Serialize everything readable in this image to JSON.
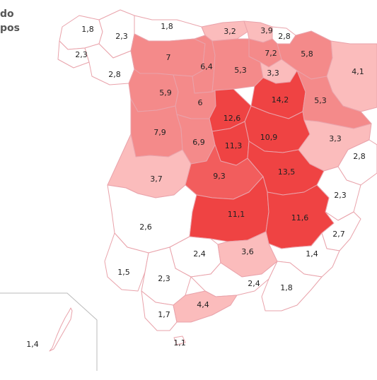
{
  "legend": {
    "line1": "do",
    "line2": "pos"
  },
  "colors": {
    "level1": "#ffffff",
    "level2": "#fbbcbc",
    "level3": "#f48a8a",
    "level4": "#f25d5d",
    "level5": "#ef4343",
    "border": "#e9a3ab"
  },
  "provinces": [
    {
      "id": "a-coruna",
      "label": "1,8",
      "level": 1
    },
    {
      "id": "lugo",
      "label": "2,3",
      "level": 1
    },
    {
      "id": "pontevedra",
      "label": "2,3",
      "level": 1
    },
    {
      "id": "ourense",
      "label": "2,8",
      "level": 1
    },
    {
      "id": "asturias",
      "label": "1,8",
      "level": 1
    },
    {
      "id": "cantabria",
      "label": "3,2",
      "level": 2
    },
    {
      "id": "bizkaia",
      "label": "3,9",
      "level": 2
    },
    {
      "id": "gipuzkoa",
      "label": "2,8",
      "level": 1
    },
    {
      "id": "alava",
      "label": "7,2",
      "level": 3
    },
    {
      "id": "navarra",
      "label": "5,8",
      "level": 3
    },
    {
      "id": "huesca",
      "label": "4,1",
      "level": 2
    },
    {
      "id": "leon",
      "label": "7",
      "level": 3
    },
    {
      "id": "palencia",
      "label": "6,4",
      "level": 3
    },
    {
      "id": "burgos",
      "label": "5,3",
      "level": 3
    },
    {
      "id": "la-rioja",
      "label": "3,3",
      "level": 2
    },
    {
      "id": "zamora",
      "label": "5,9",
      "level": 3
    },
    {
      "id": "valladolid",
      "label": "6",
      "level": 3
    },
    {
      "id": "soria",
      "label": "14,2",
      "level": 5
    },
    {
      "id": "zaragoza",
      "label": "5,3",
      "level": 3
    },
    {
      "id": "salamanca",
      "label": "7,9",
      "level": 3
    },
    {
      "id": "segovia",
      "label": "12,6",
      "level": 5
    },
    {
      "id": "guadalajara",
      "label": "10,9",
      "level": 5
    },
    {
      "id": "avila",
      "label": "6,9",
      "level": 3
    },
    {
      "id": "madrid",
      "label": "11,3",
      "level": 5
    },
    {
      "id": "teruel",
      "label": "3,3",
      "level": 2
    },
    {
      "id": "castellon",
      "label": "2,8",
      "level": 1
    },
    {
      "id": "caceres",
      "label": "3,7",
      "level": 2
    },
    {
      "id": "toledo",
      "label": "9,3",
      "level": 4
    },
    {
      "id": "cuenca",
      "label": "13,5",
      "level": 5
    },
    {
      "id": "valencia",
      "label": "2,3",
      "level": 1
    },
    {
      "id": "badajoz",
      "label": "2,6",
      "level": 1
    },
    {
      "id": "ciudad-real",
      "label": "11,1",
      "level": 5
    },
    {
      "id": "albacete",
      "label": "11,6",
      "level": 5
    },
    {
      "id": "alicante",
      "label": "2,7",
      "level": 1
    },
    {
      "id": "cordoba",
      "label": "2,4",
      "level": 1
    },
    {
      "id": "jaen",
      "label": "3,6",
      "level": 2
    },
    {
      "id": "murcia",
      "label": "1,4",
      "level": 1
    },
    {
      "id": "huelva",
      "label": "1,5",
      "level": 1
    },
    {
      "id": "sevilla",
      "label": "2,3",
      "level": 1
    },
    {
      "id": "granada",
      "label": "2,4",
      "level": 1
    },
    {
      "id": "almeria",
      "label": "1,8",
      "level": 1
    },
    {
      "id": "cadiz",
      "label": "1,7",
      "level": 1
    },
    {
      "id": "malaga",
      "label": "4,4",
      "level": 2
    },
    {
      "id": "ceuta",
      "label": "1,1",
      "level": 1
    },
    {
      "id": "canarias",
      "label": "1,4",
      "level": 1
    }
  ]
}
